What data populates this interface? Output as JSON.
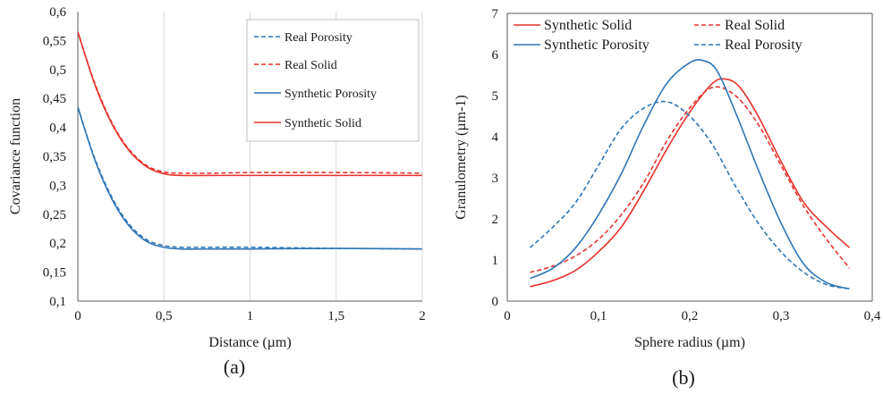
{
  "chart_data": [
    {
      "type": "line",
      "panel_label": "(a)",
      "xlabel": "Distance (µm)",
      "ylabel": "Covariance function",
      "xlim": [
        0,
        2
      ],
      "ylim": [
        0.1,
        0.6
      ],
      "xticks": [
        0,
        0.5,
        1,
        1.5,
        2
      ],
      "xtick_labels": [
        "0",
        "0,5",
        "1",
        "1,5",
        "2"
      ],
      "yticks": [
        0.1,
        0.15,
        0.2,
        0.25,
        0.3,
        0.35,
        0.4,
        0.45,
        0.5,
        0.55,
        0.6
      ],
      "ytick_labels": [
        "0,1",
        "0,15",
        "0,2",
        "0,25",
        "0,3",
        "0,35",
        "0,4",
        "0,45",
        "0,5",
        "0,55",
        "0,6"
      ],
      "grid": "vertical",
      "legend_position": "top-right",
      "series": [
        {
          "name": "Real Porosity",
          "color": "#2E75B6",
          "dash": "dashed",
          "x": [
            0,
            0.1,
            0.2,
            0.3,
            0.4,
            0.5,
            0.6,
            0.8,
            1.0,
            1.5,
            2.0
          ],
          "y": [
            0.435,
            0.345,
            0.278,
            0.232,
            0.206,
            0.196,
            0.193,
            0.193,
            0.193,
            0.191,
            0.19
          ]
        },
        {
          "name": "Real Solid",
          "color": "#E8312B",
          "dash": "dashed",
          "x": [
            0,
            0.1,
            0.2,
            0.3,
            0.4,
            0.5,
            0.6,
            0.8,
            1.0,
            1.5,
            2.0
          ],
          "y": [
            0.565,
            0.475,
            0.407,
            0.361,
            0.334,
            0.323,
            0.321,
            0.321,
            0.322,
            0.322,
            0.321
          ]
        },
        {
          "name": "Synthetic Porosity",
          "color": "#2E75B6",
          "dash": "solid",
          "x": [
            0,
            0.1,
            0.2,
            0.3,
            0.4,
            0.5,
            0.6,
            0.8,
            1.0,
            1.5,
            2.0
          ],
          "y": [
            0.435,
            0.343,
            0.275,
            0.229,
            0.203,
            0.193,
            0.19,
            0.19,
            0.19,
            0.191,
            0.19
          ]
        },
        {
          "name": "Synthetic Solid",
          "color": "#E8312B",
          "dash": "solid",
          "x": [
            0,
            0.1,
            0.2,
            0.3,
            0.4,
            0.5,
            0.6,
            0.8,
            1.0,
            1.5,
            2.0
          ],
          "y": [
            0.565,
            0.473,
            0.405,
            0.359,
            0.332,
            0.32,
            0.317,
            0.317,
            0.317,
            0.317,
            0.317
          ]
        }
      ]
    },
    {
      "type": "line",
      "panel_label": "(b)",
      "xlabel": "Sphere radius (µm)",
      "ylabel": "Granulometry (µm-1)",
      "xlim": [
        0,
        0.4
      ],
      "ylim": [
        0,
        7
      ],
      "xticks": [
        0,
        0.1,
        0.2,
        0.3,
        0.4
      ],
      "xtick_labels": [
        "0",
        "0,1",
        "0,2",
        "0,3",
        "0,4"
      ],
      "yticks": [
        0,
        1,
        2,
        3,
        4,
        5,
        6,
        7
      ],
      "ytick_labels": [
        "0",
        "1",
        "2",
        "3",
        "4",
        "5",
        "6",
        "7"
      ],
      "grid": "none",
      "legend_position": "top",
      "series": [
        {
          "name": "Synthetic Solid",
          "color": "#E8312B",
          "dash": "solid",
          "x": [
            0.025,
            0.05,
            0.075,
            0.1,
            0.125,
            0.15,
            0.175,
            0.2,
            0.225,
            0.24,
            0.255,
            0.275,
            0.3,
            0.325,
            0.35,
            0.375
          ],
          "y": [
            0.35,
            0.5,
            0.75,
            1.2,
            1.8,
            2.7,
            3.7,
            4.6,
            5.3,
            5.4,
            5.2,
            4.5,
            3.4,
            2.4,
            1.8,
            1.3
          ]
        },
        {
          "name": "Real Solid",
          "color": "#E8312B",
          "dash": "dashed",
          "x": [
            0.025,
            0.05,
            0.075,
            0.1,
            0.125,
            0.15,
            0.175,
            0.2,
            0.225,
            0.25,
            0.275,
            0.3,
            0.325,
            0.35,
            0.375
          ],
          "y": [
            0.7,
            0.85,
            1.1,
            1.5,
            2.1,
            2.9,
            3.9,
            4.7,
            5.2,
            5.0,
            4.3,
            3.3,
            2.3,
            1.5,
            0.8
          ]
        },
        {
          "name": "Synthetic Porosity",
          "color": "#2E75B6",
          "dash": "solid",
          "x": [
            0.025,
            0.05,
            0.075,
            0.1,
            0.125,
            0.15,
            0.175,
            0.2,
            0.215,
            0.23,
            0.25,
            0.275,
            0.3,
            0.325,
            0.35,
            0.375
          ],
          "y": [
            0.55,
            0.8,
            1.3,
            2.1,
            3.1,
            4.3,
            5.3,
            5.8,
            5.85,
            5.6,
            4.6,
            3.2,
            1.9,
            0.9,
            0.45,
            0.3
          ]
        },
        {
          "name": "Real Porosity",
          "color": "#2E75B6",
          "dash": "dashed",
          "x": [
            0.025,
            0.05,
            0.075,
            0.1,
            0.125,
            0.15,
            0.175,
            0.2,
            0.225,
            0.25,
            0.275,
            0.3,
            0.325,
            0.35,
            0.375
          ],
          "y": [
            1.3,
            1.8,
            2.4,
            3.3,
            4.2,
            4.7,
            4.85,
            4.5,
            3.8,
            2.8,
            1.9,
            1.2,
            0.7,
            0.4,
            0.3
          ]
        }
      ]
    }
  ]
}
